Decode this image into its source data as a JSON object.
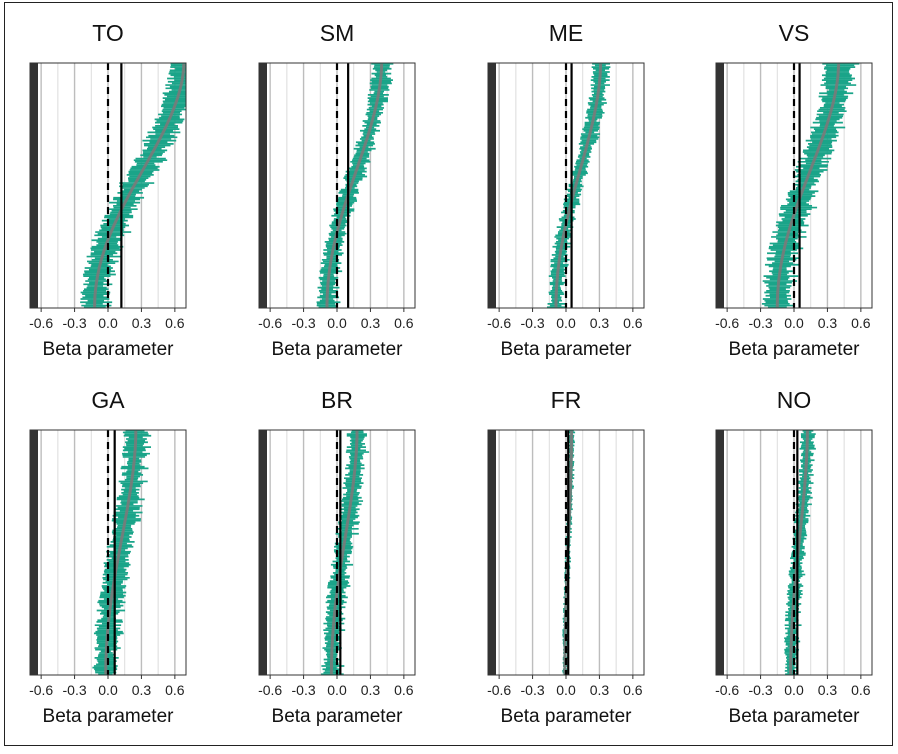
{
  "chart_data": {
    "type": "forest",
    "layout": {
      "rows": 2,
      "cols": 4
    },
    "xlim": [
      -0.7,
      0.7
    ],
    "x_ticks": [
      -0.6,
      -0.3,
      0.0,
      0.3,
      0.6
    ],
    "x_tick_labels": [
      "-0.6",
      "-0.3",
      "0.0",
      "0.3",
      "0.6"
    ],
    "xlabel": "Beta parameter",
    "grid": true,
    "colors": {
      "interval": "#1aa489",
      "estimate": "#7a7a7a",
      "reference_line": "#000000",
      "left_bar": "#333333",
      "grid": "#c8c8c8"
    },
    "reference_lines": {
      "dashed_at": 0.0,
      "solid_at": "panel mean"
    },
    "panels": [
      {
        "title": "TO",
        "mean": 0.12,
        "estimate_range": [
          -0.12,
          0.68
        ],
        "spread": 0.11
      },
      {
        "title": "SM",
        "mean": 0.1,
        "estimate_range": [
          -0.09,
          0.4
        ],
        "spread": 0.07
      },
      {
        "title": "ME",
        "mean": 0.05,
        "estimate_range": [
          -0.09,
          0.31
        ],
        "spread": 0.06
      },
      {
        "title": "VS",
        "mean": 0.05,
        "estimate_range": [
          -0.15,
          0.4
        ],
        "spread": 0.11
      },
      {
        "title": "GA",
        "mean": 0.06,
        "estimate_range": [
          -0.02,
          0.25
        ],
        "spread": 0.09
      },
      {
        "title": "BR",
        "mean": 0.03,
        "estimate_range": [
          -0.05,
          0.18
        ],
        "spread": 0.07
      },
      {
        "title": "FR",
        "mean": 0.02,
        "estimate_range": [
          -0.01,
          0.05
        ],
        "spread": 0.02
      },
      {
        "title": "NO",
        "mean": 0.03,
        "estimate_range": [
          -0.03,
          0.12
        ],
        "spread": 0.05
      }
    ]
  }
}
